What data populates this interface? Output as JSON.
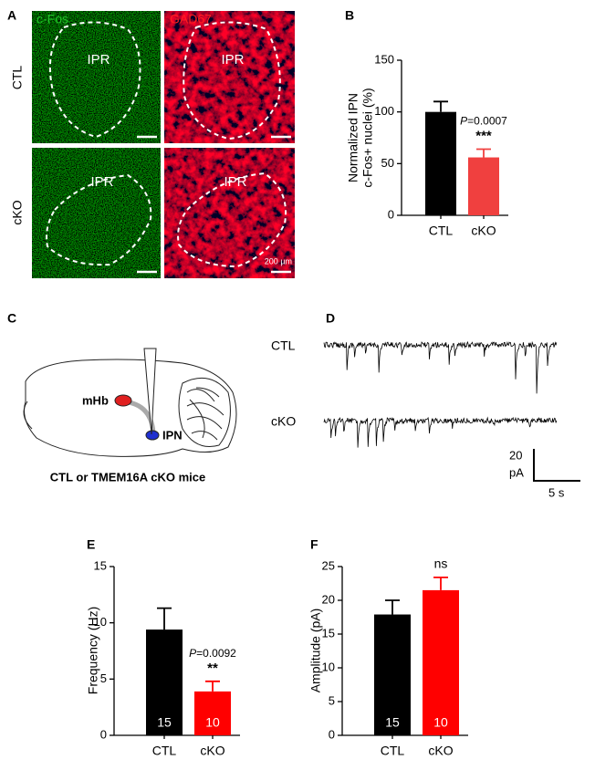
{
  "panels": {
    "a": {
      "label": "A",
      "columns": [
        "c-Fos",
        "GAD67"
      ],
      "rows": [
        "CTL",
        "cKO"
      ],
      "region": "IPR",
      "scale_bar": "200 µm"
    },
    "c": {
      "label": "C",
      "mhb": "mHb",
      "ipn": "IPN",
      "caption": "CTL or TMEM16A cKO mice"
    },
    "d": {
      "label": "D",
      "traces": [
        "CTL",
        "cKO"
      ],
      "scale_y": [
        "20",
        "pA"
      ],
      "scale_x": "5 s"
    }
  },
  "chart_data": [
    {
      "panel": "B",
      "type": "bar",
      "categories": [
        "CTL",
        "cKO"
      ],
      "values": [
        100,
        56
      ],
      "errors": [
        10,
        8
      ],
      "colors": [
        "#000000",
        "#f0403f"
      ],
      "ylabel": [
        "Normalized IPN",
        "c-Fos+ nuclei (%)"
      ],
      "ylim": [
        0,
        150
      ],
      "yticks": [
        0,
        50,
        100,
        150
      ],
      "p_symbol": "P",
      "p_text": "=0.0007",
      "significance": "***"
    },
    {
      "panel": "E",
      "type": "bar",
      "categories": [
        "CTL",
        "cKO"
      ],
      "values": [
        9.4,
        3.9
      ],
      "errors": [
        1.9,
        0.9
      ],
      "colors": [
        "#000000",
        "#ff0000"
      ],
      "ylabel": [
        "Frequency (Hz)"
      ],
      "ylim": [
        0,
        15
      ],
      "yticks": [
        0,
        5,
        10,
        15
      ],
      "n": [
        15,
        10
      ],
      "p_symbol": "P",
      "p_text": "=0.0092",
      "significance": "**"
    },
    {
      "panel": "F",
      "type": "bar",
      "categories": [
        "CTL",
        "cKO"
      ],
      "values": [
        17.9,
        21.5
      ],
      "errors": [
        2.1,
        1.9
      ],
      "colors": [
        "#000000",
        "#ff0000"
      ],
      "ylabel": [
        "Amplitude (pA)"
      ],
      "ylim": [
        0,
        25
      ],
      "yticks": [
        0,
        5,
        10,
        15,
        20,
        25
      ],
      "n": [
        15,
        10
      ],
      "significance": "ns"
    }
  ]
}
